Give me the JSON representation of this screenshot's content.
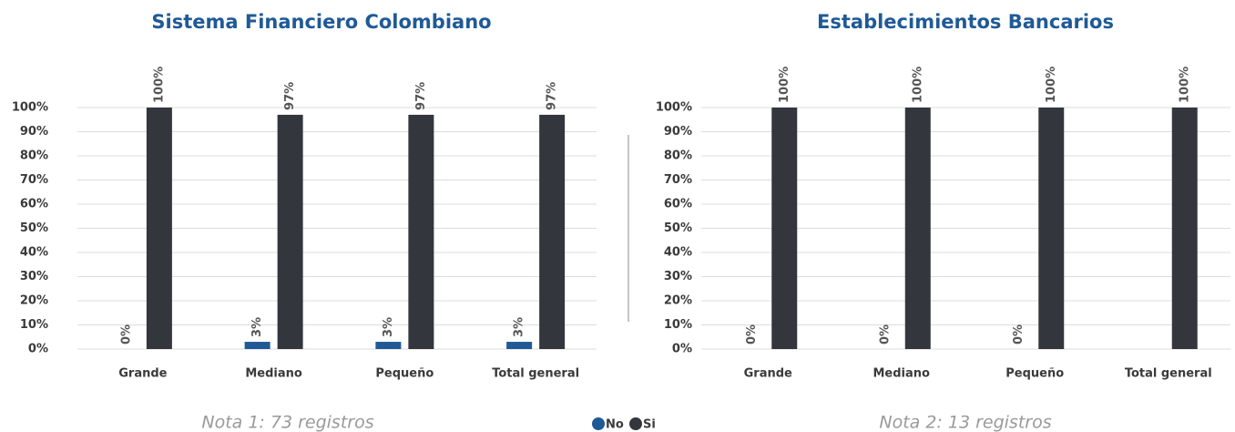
{
  "chart_data": [
    {
      "type": "bar",
      "title": "Sistema Financiero Colombiano",
      "note": "Nota 1: 73 registros",
      "categories": [
        "Grande",
        "Mediano",
        "Pequeño",
        "Total general"
      ],
      "series": [
        {
          "name": "No",
          "color": "#1f5a96",
          "values": [
            0,
            3,
            3,
            3
          ],
          "value_labels": [
            "0%",
            "3%",
            "3%",
            "3%"
          ]
        },
        {
          "name": "Si",
          "color": "#33363d",
          "values": [
            100,
            97,
            97,
            97
          ],
          "value_labels": [
            "100%",
            "97%",
            "97%",
            "97%"
          ]
        }
      ],
      "ylim": [
        0,
        100
      ],
      "yticks": [
        {
          "value": 0,
          "label": "0%"
        },
        {
          "value": 10,
          "label": "10%"
        },
        {
          "value": 20,
          "label": "20%"
        },
        {
          "value": 30,
          "label": "30%"
        },
        {
          "value": 40,
          "label": "40%"
        },
        {
          "value": 50,
          "label": "50%"
        },
        {
          "value": 60,
          "label": "60%"
        },
        {
          "value": 70,
          "label": "70%"
        },
        {
          "value": 80,
          "label": "80%"
        },
        {
          "value": 90,
          "label": "90%"
        },
        {
          "value": 100,
          "label": "100%"
        }
      ],
      "grid": true
    },
    {
      "type": "bar",
      "title": "Establecimientos Bancarios",
      "note": "Nota 2: 13 registros",
      "categories": [
        "Grande",
        "Mediano",
        "Pequeño",
        "Total general"
      ],
      "series": [
        {
          "name": "No",
          "color": "#1f5a96",
          "values": [
            0,
            0,
            0,
            null
          ],
          "value_labels": [
            "0%",
            "0%",
            "0%",
            null
          ]
        },
        {
          "name": "Si",
          "color": "#33363d",
          "values": [
            100,
            100,
            100,
            100
          ],
          "value_labels": [
            "100%",
            "100%",
            "100%",
            "100%"
          ]
        }
      ],
      "ylim": [
        0,
        100
      ],
      "yticks": [
        {
          "value": 0,
          "label": "0%"
        },
        {
          "value": 10,
          "label": "10%"
        },
        {
          "value": 20,
          "label": "20%"
        },
        {
          "value": 30,
          "label": "30%"
        },
        {
          "value": 40,
          "label": "40%"
        },
        {
          "value": 50,
          "label": "50%"
        },
        {
          "value": 60,
          "label": "60%"
        },
        {
          "value": 70,
          "label": "70%"
        },
        {
          "value": 80,
          "label": "80%"
        },
        {
          "value": 90,
          "label": "90%"
        },
        {
          "value": 100,
          "label": "100%"
        }
      ],
      "grid": true
    }
  ]
}
